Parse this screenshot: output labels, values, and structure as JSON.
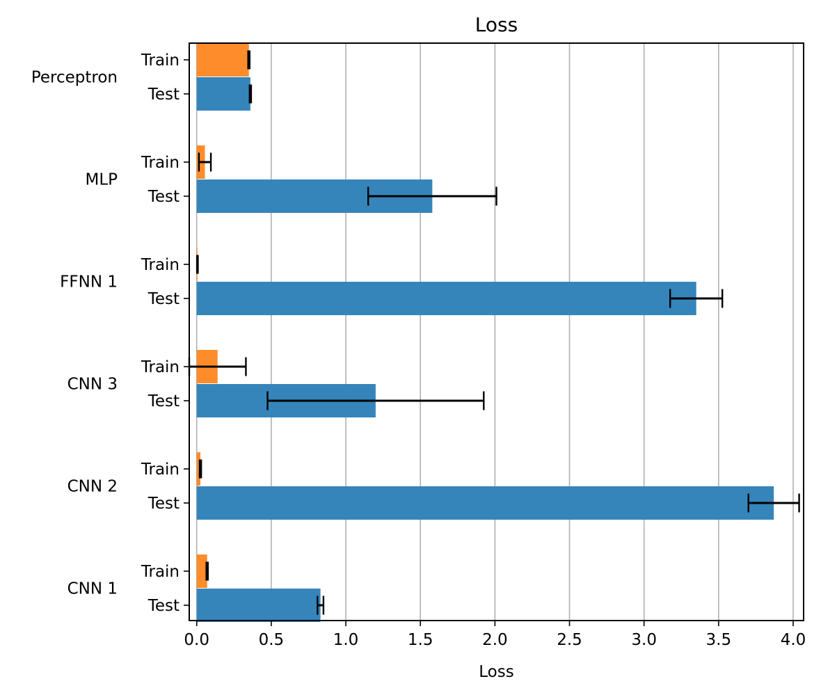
{
  "chart_data": {
    "type": "bar",
    "orientation": "horizontal",
    "title": "Loss",
    "xlabel": "Loss",
    "ylabel": "",
    "xlim": [
      -0.05,
      4.07
    ],
    "xticks": [
      "0.0",
      "0.5",
      "1.0",
      "1.5",
      "2.0",
      "2.5",
      "3.0",
      "3.5",
      "4.0"
    ],
    "grid": "vertical",
    "legend": "none",
    "colors": {
      "train": "#ff8c2b",
      "test": "#3585bb",
      "grid": "#b0b0b0",
      "error": "#000000"
    },
    "groups": [
      {
        "name": "Perceptron",
        "train": {
          "label": "Train",
          "value": 0.35,
          "err": 0.005
        },
        "test": {
          "label": "Test",
          "value": 0.36,
          "err": 0.005
        }
      },
      {
        "name": "MLP",
        "train": {
          "label": "Train",
          "value": 0.055,
          "err": 0.04
        },
        "test": {
          "label": "Test",
          "value": 1.58,
          "err": 0.43
        }
      },
      {
        "name": "FFNN 1",
        "train": {
          "label": "Train",
          "value": 0.005,
          "err": 0.003
        },
        "test": {
          "label": "Test",
          "value": 3.35,
          "err": 0.175
        }
      },
      {
        "name": "CNN 3",
        "train": {
          "label": "Train",
          "value": 0.14,
          "err": 0.19
        },
        "test": {
          "label": "Test",
          "value": 1.2,
          "err": 0.725
        }
      },
      {
        "name": "CNN 2",
        "train": {
          "label": "Train",
          "value": 0.025,
          "err": 0.005
        },
        "test": {
          "label": "Test",
          "value": 3.87,
          "err": 0.17
        }
      },
      {
        "name": "CNN 1",
        "train": {
          "label": "Train",
          "value": 0.07,
          "err": 0.005
        },
        "test": {
          "label": "Test",
          "value": 0.83,
          "err": 0.02
        }
      }
    ]
  }
}
